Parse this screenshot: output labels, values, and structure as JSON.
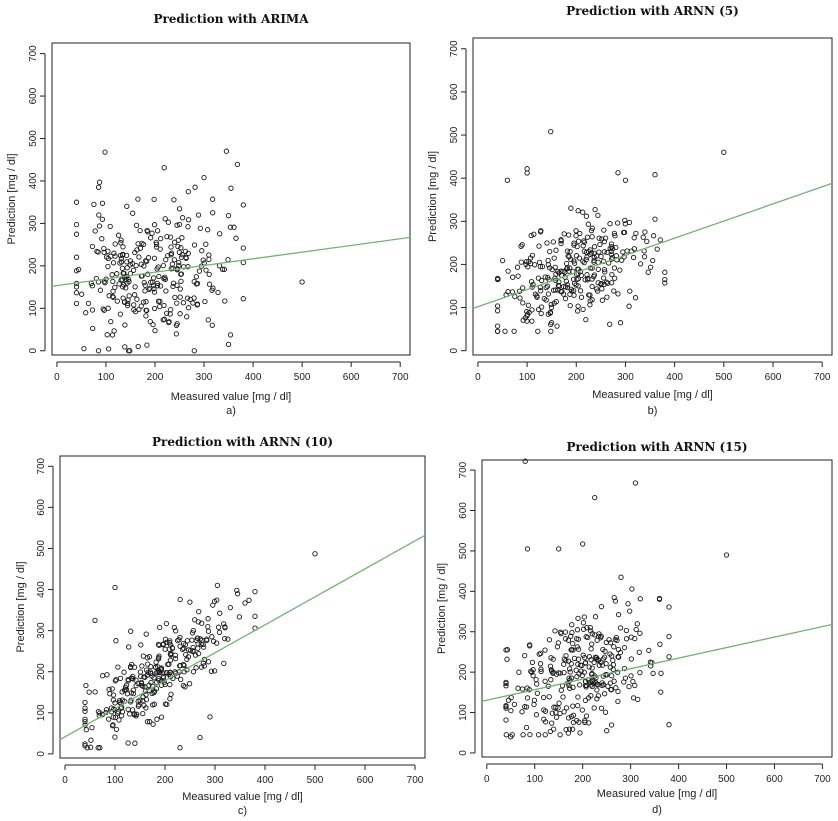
{
  "colors": {
    "fit_line": "#74b274",
    "points": "#1a1a1a",
    "frame": "#222222"
  },
  "chart_data": [
    {
      "type": "scatter",
      "panel": "a)",
      "title": "Prediction with ARIMA",
      "xlabel": "Measured value [mg / dl]",
      "ylabel": "Prediction [mg / dl]",
      "xlim": [
        -10,
        720
      ],
      "ylim": [
        -10,
        725
      ],
      "xticks": [
        0,
        100,
        200,
        300,
        400,
        500,
        600,
        700
      ],
      "yticks": [
        0,
        100,
        200,
        300,
        400,
        500,
        600,
        700
      ],
      "fit_line": {
        "x": [
          -10,
          720
        ],
        "y": [
          152,
          267
        ]
      },
      "points": {
        "n": 300,
        "x_mean": 190,
        "x_sd": 75,
        "x_min": 40,
        "x_max": 380,
        "y_base": 155,
        "slope": 0.12,
        "y_sd": 80,
        "y_min": 0,
        "y_max": 470,
        "seed": 11,
        "extra": [
          [
            98,
            468
          ],
          [
            87,
            397
          ],
          [
            85,
            385
          ],
          [
            500,
            162
          ],
          [
            300,
            408
          ],
          [
            355,
            383
          ],
          [
            40,
            350
          ],
          [
            380,
            242
          ],
          [
            268,
            375
          ],
          [
            55,
            5
          ],
          [
            350,
            15
          ]
        ]
      }
    },
    {
      "type": "scatter",
      "panel": "b)",
      "title": "Prediction with ARNN (5)",
      "xlabel": "Measured value [mg / dl]",
      "ylabel": "Prediction [mg / dl]",
      "xlim": [
        -10,
        720
      ],
      "ylim": [
        -10,
        725
      ],
      "xticks": [
        0,
        100,
        200,
        300,
        400,
        500,
        600,
        700
      ],
      "yticks": [
        0,
        100,
        200,
        300,
        400,
        500,
        600,
        700
      ],
      "fit_line": {
        "x": [
          -10,
          720
        ],
        "y": [
          98,
          388
        ]
      },
      "points": {
        "n": 300,
        "x_mean": 190,
        "x_sd": 75,
        "x_min": 40,
        "x_max": 380,
        "y_base": 102,
        "slope": 0.4,
        "y_sd": 60,
        "y_min": 45,
        "y_max": 430,
        "seed": 23,
        "extra": [
          [
            148,
            508
          ],
          [
            500,
            460
          ],
          [
            100,
            422
          ],
          [
            100,
            412
          ],
          [
            60,
            395
          ],
          [
            360,
            408
          ],
          [
            300,
            395
          ],
          [
            55,
            45
          ],
          [
            290,
            65
          ],
          [
            380,
            165
          ]
        ]
      }
    },
    {
      "type": "scatter",
      "panel": "c)",
      "title": "Prediction with ARNN (10)",
      "xlabel": "Measured value [mg / dl]",
      "ylabel": "Prediction [mg / dl]",
      "xlim": [
        -10,
        720
      ],
      "ylim": [
        -10,
        725
      ],
      "xticks": [
        0,
        100,
        200,
        300,
        400,
        500,
        600,
        700
      ],
      "yticks": [
        0,
        100,
        200,
        300,
        400,
        500,
        600,
        700
      ],
      "fit_line": {
        "x": [
          -10,
          720
        ],
        "y": [
          35,
          532
        ]
      },
      "points": {
        "n": 300,
        "x_mean": 190,
        "x_sd": 75,
        "x_min": 40,
        "x_max": 380,
        "y_base": 40,
        "slope": 0.85,
        "y_sd": 48,
        "y_min": 15,
        "y_max": 410,
        "seed": 37,
        "extra": [
          [
            500,
            487
          ],
          [
            100,
            405
          ],
          [
            380,
            395
          ],
          [
            230,
            15
          ],
          [
            270,
            40
          ],
          [
            60,
            325
          ],
          [
            290,
            90
          ],
          [
            40,
            20
          ]
        ]
      }
    },
    {
      "type": "scatter",
      "panel": "d)",
      "title": "Prediction with ARNN (15)",
      "xlabel": "Measured value [mg / dl]",
      "ylabel": "Prediction [mg / dl]",
      "xlim": [
        -10,
        720
      ],
      "ylim": [
        -10,
        725
      ],
      "xticks": [
        0,
        100,
        200,
        300,
        400,
        500,
        600,
        700
      ],
      "yticks": [
        0,
        100,
        200,
        300,
        400,
        500,
        600,
        700
      ],
      "fit_line": {
        "x": [
          -10,
          720
        ],
        "y": [
          128,
          318
        ]
      },
      "points": {
        "n": 300,
        "x_mean": 190,
        "x_sd": 75,
        "x_min": 40,
        "x_max": 380,
        "y_base": 130,
        "slope": 0.35,
        "y_sd": 70,
        "y_min": 45,
        "y_max": 440,
        "seed": 53,
        "extra": [
          [
            80,
            722
          ],
          [
            310,
            668
          ],
          [
            225,
            632
          ],
          [
            200,
            517
          ],
          [
            85,
            505
          ],
          [
            500,
            490
          ],
          [
            150,
            505
          ],
          [
            280,
            435
          ],
          [
            380,
            70
          ],
          [
            50,
            40
          ],
          [
            250,
            55
          ]
        ]
      }
    }
  ]
}
